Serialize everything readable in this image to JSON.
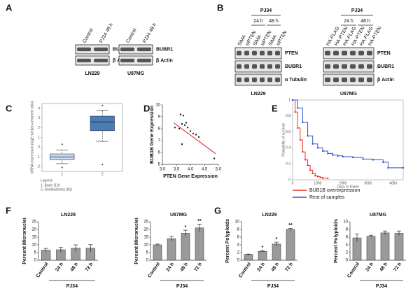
{
  "panel_labels": [
    "A",
    "B",
    "C",
    "D",
    "E",
    "F",
    "G"
  ],
  "blots": [
    {
      "cell_line": "LN229",
      "lanes": [
        "Control",
        "PJ34 48 h"
      ],
      "rows": [
        "BUBR1",
        "β Actin"
      ]
    },
    {
      "cell_line": "U87MG",
      "lanes": [
        "Control",
        "PJ34 48 h"
      ],
      "rows": [
        "BUBR1",
        "β Actin"
      ]
    },
    {
      "cell_line": "LN229",
      "treatment": "PJ34",
      "timepoints": [
        "24 h",
        "48 h"
      ],
      "lanes": [
        "SiMA",
        "siPTEN",
        "SiMA",
        "siPTEN",
        "SiMA",
        "siPTEN"
      ],
      "rows": [
        "PTEN",
        "BUBR1",
        "α Tubulin"
      ]
    },
    {
      "cell_line": "U87MG",
      "treatment": "PJ34",
      "timepoints": [
        "24 h",
        "48 h"
      ],
      "lanes": [
        "HA-FLAG",
        "HA-PTEN",
        "HA-FLAG",
        "HA-PTEN",
        "HA-FLAG",
        "HA-PTEN"
      ],
      "rows": [
        "PTEN",
        "BUBR1",
        "β Actin"
      ]
    }
  ],
  "chart_data": [
    {
      "type": "box",
      "ylabel": "mRNA expression (log2 median-centered ratio)",
      "categories": [
        "1",
        "2"
      ],
      "boxes": [
        {
          "color": "#c9dcef",
          "whisker_low": -1.7,
          "q1": -1.3,
          "median": -1.0,
          "q3": -0.7,
          "whisker_high": -0.3,
          "outliers": [
            0.3,
            -2.1
          ]
        },
        {
          "color": "#4a7db3",
          "whisker_low": 0.6,
          "q1": 1.7,
          "median": 2.6,
          "q3": 3.2,
          "whisker_high": 3.8,
          "outliers": [
            4.3,
            -1.8
          ]
        }
      ],
      "ylim": [
        -2.5,
        4.5
      ],
      "yticks": [
        -2,
        -1,
        0,
        1,
        2,
        3,
        4
      ],
      "legend_title": "Legend",
      "legend": [
        "1. Brain (10)",
        "2. Glioblastoma (81)"
      ]
    },
    {
      "type": "scatter",
      "xlabel": "PTEN Gene Expression",
      "ylabel": "BUB1B Gene Expression",
      "x": [
        3.45,
        3.6,
        3.65,
        3.7,
        3.7,
        3.75,
        3.8,
        3.85,
        3.9,
        4.0,
        4.1,
        4.2,
        4.3,
        4.85
      ],
      "y": [
        8.1,
        8.0,
        9.2,
        8.4,
        6.7,
        9.1,
        8.3,
        8.5,
        8.1,
        7.8,
        7.6,
        7.5,
        7.3,
        5.5
      ],
      "color": "#222222",
      "fit": {
        "x": [
          3.4,
          4.9
        ],
        "y": [
          8.5,
          5.9
        ],
        "color": "#e02020"
      },
      "xlim": [
        3.0,
        5.0
      ],
      "xticks": [
        {
          "value": 3,
          "label": "3.0"
        },
        3.5,
        {
          "value": 4,
          "label": "4.0"
        },
        4.5,
        {
          "value": 5,
          "label": "5.0"
        }
      ],
      "ylim": [
        5,
        10
      ],
      "yticks": [
        5,
        6,
        7,
        8,
        9,
        10
      ]
    },
    {
      "type": "line",
      "xlabel": "Days to Event",
      "ylabel": "Probability of survival",
      "series": [
        {
          "name": "BUB1B overexpression",
          "color": "#e8332a",
          "x": [
            0,
            100,
            200,
            300,
            400,
            500,
            600,
            700,
            800,
            900,
            1000,
            1100,
            1200,
            1400
          ],
          "values": [
            1,
            0.85,
            0.65,
            0.5,
            0.35,
            0.25,
            0.18,
            0.12,
            0.08,
            0.05,
            0.04,
            0.03,
            0.02,
            0.02
          ]
        },
        {
          "name": "Rest of samples",
          "color": "#2a4fd8",
          "x": [
            0,
            200,
            400,
            600,
            800,
            1000,
            1200,
            1400,
            1600,
            1800,
            2000,
            2400,
            2800,
            3200,
            3600,
            3800,
            4400
          ],
          "values": [
            1,
            0.9,
            0.72,
            0.55,
            0.45,
            0.4,
            0.36,
            0.33,
            0.31,
            0.3,
            0.29,
            0.28,
            0.26,
            0.25,
            0.22,
            0.15,
            0.15
          ]
        }
      ],
      "xlim": [
        0,
        4400
      ],
      "xticks": [
        0,
        1000,
        2000,
        3000,
        4000
      ],
      "ylim": [
        0,
        1
      ],
      "yticks": [
        0,
        0.2,
        0.4,
        0.6,
        0.8,
        1
      ]
    },
    {
      "type": "bar",
      "title": "LN229",
      "ylabel": "Percent Micronuclei",
      "categories": [
        "Control",
        "24 h",
        "48 h",
        "72 h"
      ],
      "values": [
        6.5,
        6.8,
        7.8,
        7.8
      ],
      "errors": [
        1.2,
        1.5,
        2.2,
        2.3
      ],
      "significance": [
        null,
        null,
        null,
        null
      ],
      "group_label": "PJ34",
      "color": "#9a9a9a",
      "ylim": [
        0,
        25
      ],
      "yticks": [
        0,
        5,
        10,
        15,
        20,
        25
      ]
    },
    {
      "type": "bar",
      "title": "U87MG",
      "ylabel": "Percent Micronuclei",
      "categories": [
        "Control",
        "24 h",
        "48 h",
        "72 h"
      ],
      "values": [
        10,
        14,
        17.5,
        21
      ],
      "errors": [
        0.5,
        1.5,
        2,
        2.5
      ],
      "significance": [
        null,
        null,
        "*",
        "**"
      ],
      "group_label": "PJ34",
      "color": "#9a9a9a",
      "ylim": [
        0,
        25
      ],
      "yticks": [
        0,
        5,
        10,
        15,
        20,
        25
      ]
    },
    {
      "type": "bar",
      "title": "LN229",
      "ylabel": "Percent Polyploids",
      "categories": [
        "Control",
        "24 h",
        "48 h",
        "72 h"
      ],
      "values": [
        1.5,
        2.3,
        4.2,
        8
      ],
      "errors": [
        0.1,
        0.2,
        0.5,
        0.3
      ],
      "significance": [
        null,
        "*",
        "*",
        "**"
      ],
      "group_label": "PJ34",
      "color": "#9a9a9a",
      "ylim": [
        0,
        10
      ],
      "yticks": [
        0,
        2,
        4,
        6,
        8,
        10
      ]
    },
    {
      "type": "bar",
      "title": "U87MG",
      "ylabel": "Percent Polyploids",
      "categories": [
        "Control",
        "24 h",
        "48 h",
        "72 h"
      ],
      "values": [
        5.8,
        6.2,
        7.1,
        7.0
      ],
      "errors": [
        1.0,
        0.3,
        0.5,
        0.6
      ],
      "significance": [
        null,
        null,
        null,
        null
      ],
      "group_label": "PJ34",
      "color": "#9a9a9a",
      "ylim": [
        0,
        10
      ],
      "yticks": [
        0,
        2,
        4,
        6,
        8,
        10
      ]
    }
  ]
}
